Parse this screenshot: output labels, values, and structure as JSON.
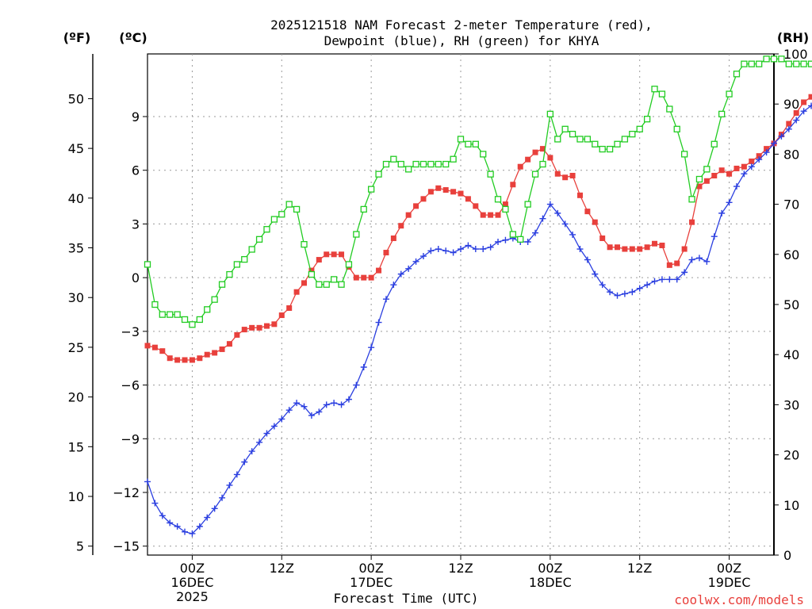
{
  "chart_data": {
    "type": "line",
    "title_line1": "2025121518 NAM Forecast 2-meter Temperature (red),",
    "title_line2": "Dewpoint (blue), RH (green) for KHYA",
    "xlabel": "Forecast Time (UTC)",
    "watermark": "coolwx.com/models",
    "unit_f": "(ºF)",
    "unit_c": "(ºC)",
    "unit_rh": "(RH)",
    "c_range": [
      -15.5,
      12.5
    ],
    "rh_range": [
      0,
      100
    ],
    "hours_range": [
      -6,
      78
    ],
    "x_ticks": [
      {
        "hour": 0,
        "line1": "00Z",
        "line2": "16DEC",
        "line3": "2025"
      },
      {
        "hour": 12,
        "line1": "12Z",
        "line2": "",
        "line3": ""
      },
      {
        "hour": 24,
        "line1": "00Z",
        "line2": "17DEC",
        "line3": ""
      },
      {
        "hour": 36,
        "line1": "12Z",
        "line2": "",
        "line3": ""
      },
      {
        "hour": 48,
        "line1": "00Z",
        "line2": "18DEC",
        "line3": ""
      },
      {
        "hour": 60,
        "line1": "12Z",
        "line2": "",
        "line3": ""
      },
      {
        "hour": 72,
        "line1": "00Z",
        "line2": "19DEC",
        "line3": ""
      }
    ],
    "f_ticks": [
      "5",
      "10",
      "15",
      "20",
      "25",
      "30",
      "35",
      "40",
      "45",
      "50"
    ],
    "c_ticks": [
      "-15",
      "-12",
      "-9",
      "-6",
      "-3",
      "0",
      "3",
      "6",
      "9"
    ],
    "rh_ticks": [
      "0",
      "10",
      "20",
      "30",
      "40",
      "50",
      "60",
      "70",
      "80",
      "90",
      "100"
    ],
    "series": [
      {
        "name": "2-meter Temperature",
        "unit": "C",
        "color": "#e8403c",
        "marker": "filled-square",
        "values": [
          -3.8,
          -3.9,
          -4.1,
          -4.5,
          -4.6,
          -4.6,
          -4.6,
          -4.5,
          -4.3,
          -4.2,
          -4.0,
          -3.7,
          -3.2,
          -2.9,
          -2.8,
          -2.8,
          -2.7,
          -2.6,
          -2.1,
          -1.7,
          -0.8,
          -0.3,
          0.4,
          1.0,
          1.3,
          1.3,
          1.3,
          0.6,
          0.0,
          0.0,
          0.0,
          0.4,
          1.4,
          2.2,
          2.9,
          3.5,
          4.0,
          4.4,
          4.8,
          5.0,
          4.9,
          4.8,
          4.7,
          4.4,
          4.0,
          3.5,
          3.5,
          3.5,
          4.1,
          5.2,
          6.2,
          6.6,
          7.0,
          7.2,
          6.7,
          5.8,
          5.6,
          5.7,
          4.6,
          3.7,
          3.1,
          2.2,
          1.7,
          1.7,
          1.6,
          1.6,
          1.6,
          1.7,
          1.9,
          1.8,
          0.7,
          0.8,
          1.6,
          3.1,
          5.1,
          5.4,
          5.7,
          6.0,
          5.8,
          6.1,
          6.2,
          6.5,
          6.8,
          7.2,
          7.5,
          8.0,
          8.6,
          9.2,
          9.8,
          10.1,
          10.6
        ]
      },
      {
        "name": "Dewpoint",
        "unit": "C",
        "color": "#2b3fe0",
        "marker": "plus",
        "values": [
          -11.4,
          -12.6,
          -13.3,
          -13.7,
          -13.9,
          -14.2,
          -14.3,
          -13.9,
          -13.4,
          -12.9,
          -12.3,
          -11.6,
          -11.0,
          -10.3,
          -9.7,
          -9.2,
          -8.7,
          -8.3,
          -7.9,
          -7.4,
          -7.0,
          -7.2,
          -7.7,
          -7.5,
          -7.1,
          -7.0,
          -7.1,
          -6.8,
          -6.0,
          -5.0,
          -3.9,
          -2.5,
          -1.2,
          -0.4,
          0.2,
          0.5,
          0.9,
          1.2,
          1.5,
          1.6,
          1.5,
          1.4,
          1.6,
          1.8,
          1.6,
          1.6,
          1.7,
          2.0,
          2.1,
          2.2,
          2.0,
          2.0,
          2.5,
          3.3,
          4.1,
          3.6,
          3.0,
          2.4,
          1.6,
          1.0,
          0.2,
          -0.4,
          -0.8,
          -1.0,
          -0.9,
          -0.8,
          -0.6,
          -0.4,
          -0.2,
          -0.1,
          -0.1,
          -0.1,
          0.3,
          1.0,
          1.1,
          0.9,
          2.3,
          3.6,
          4.2,
          5.1,
          5.8,
          6.2,
          6.6,
          7.0,
          7.5,
          7.9,
          8.3,
          8.8,
          9.3,
          9.6,
          10.0
        ]
      },
      {
        "name": "Relative Humidity",
        "unit": "%",
        "color": "#22cc22",
        "marker": "open-square",
        "values": [
          58,
          50,
          48,
          48,
          48,
          47,
          46,
          47,
          49,
          51,
          54,
          56,
          58,
          59,
          61,
          63,
          65,
          67,
          68,
          70,
          69,
          62,
          56,
          54,
          54,
          55,
          54,
          58,
          64,
          69,
          73,
          76,
          78,
          79,
          78,
          77,
          78,
          78,
          78,
          78,
          78,
          79,
          83,
          82,
          82,
          80,
          76,
          71,
          69,
          64,
          63,
          70,
          76,
          78,
          88,
          83,
          85,
          84,
          83,
          83,
          82,
          81,
          81,
          82,
          83,
          84,
          85,
          87,
          93,
          92,
          89,
          85,
          80,
          71,
          75,
          77,
          82,
          88,
          92,
          96,
          98,
          98,
          98,
          99,
          99,
          99,
          98,
          98,
          98,
          98,
          97
        ]
      }
    ]
  }
}
